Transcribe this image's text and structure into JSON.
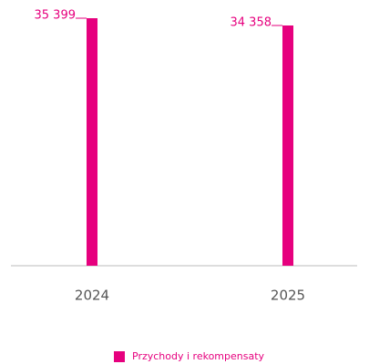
{
  "chart_data": {
    "type": "bar",
    "categories": [
      "2024",
      "2025"
    ],
    "series": [
      {
        "name": "Przychody i rekompensaty",
        "color": "#e6007e",
        "values": [
          35399,
          34358
        ],
        "value_labels": [
          "35 399",
          "34 358"
        ]
      }
    ],
    "ylim": [
      0,
      35400
    ]
  }
}
